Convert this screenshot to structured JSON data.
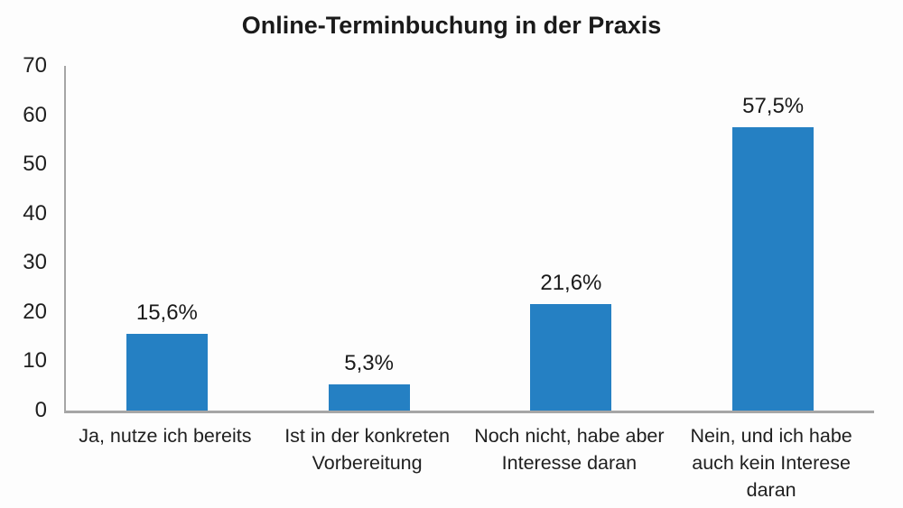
{
  "title": "Online-Terminbuchung in der Praxis",
  "chart_data": {
    "type": "bar",
    "title": "Online-Terminbuchung in der Praxis",
    "categories": [
      "Ja, nutze ich bereits",
      "Ist in der konkreten Vorbereitung",
      "Noch nicht, habe aber Interesse daran",
      "Nein, und ich habe auch kein Interese daran"
    ],
    "values": [
      15.6,
      5.3,
      21.6,
      57.5
    ],
    "value_labels": [
      "15,6%",
      "5,3%",
      "21,6%",
      "57,5%"
    ],
    "xlabel": "",
    "ylabel": "",
    "ylim": [
      0,
      70
    ],
    "yticks": [
      0,
      10,
      20,
      30,
      40,
      50,
      60,
      70
    ],
    "grid": false,
    "legend": false,
    "bar_color": "#2580C3",
    "axis_color": "#A6A6A6",
    "text_color": "#1A1A1A"
  }
}
